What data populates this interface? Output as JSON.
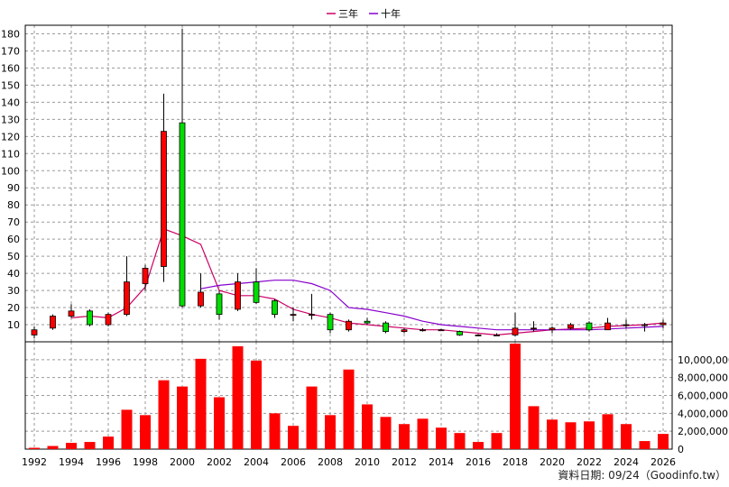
{
  "chart_data": [
    {
      "type": "candlestick",
      "panel": "price",
      "legend": [
        {
          "name": "三年",
          "color": "#cc0066"
        },
        {
          "name": "十年",
          "color": "#8800cc"
        }
      ],
      "legend_position": "top-center",
      "ylim": [
        0,
        185
      ],
      "yticks": [
        10,
        20,
        30,
        40,
        50,
        60,
        70,
        80,
        90,
        100,
        110,
        120,
        130,
        140,
        150,
        160,
        170,
        180
      ],
      "grid": true,
      "up_color": "#ff0000",
      "down_color": "#00dd00",
      "candles": [
        {
          "year": 1992,
          "open": 4,
          "close": 7,
          "high": 9,
          "low": 2
        },
        {
          "year": 1993,
          "open": 8,
          "close": 15,
          "high": 16,
          "low": 7
        },
        {
          "year": 1994,
          "open": 15,
          "close": 18,
          "high": 22,
          "low": 14
        },
        {
          "year": 1995,
          "open": 18,
          "close": 10,
          "high": 19,
          "low": 9
        },
        {
          "year": 1996,
          "open": 10,
          "close": 16,
          "high": 17,
          "low": 9
        },
        {
          "year": 1997,
          "open": 16,
          "close": 35,
          "high": 50,
          "low": 15
        },
        {
          "year": 1998,
          "open": 34,
          "close": 43,
          "high": 45,
          "low": 30
        },
        {
          "year": 1999,
          "open": 44,
          "close": 123,
          "high": 145,
          "low": 35
        },
        {
          "year": 2000,
          "open": 128,
          "close": 21,
          "high": 183,
          "low": 20
        },
        {
          "year": 2001,
          "open": 21,
          "close": 29,
          "high": 40,
          "low": 20
        },
        {
          "year": 2002,
          "open": 28,
          "close": 16,
          "high": 30,
          "low": 13
        },
        {
          "year": 2003,
          "open": 19,
          "close": 35,
          "high": 40,
          "low": 18
        },
        {
          "year": 2004,
          "open": 35,
          "close": 23,
          "high": 43,
          "low": 22
        },
        {
          "year": 2005,
          "open": 24,
          "close": 16,
          "high": 25,
          "low": 14
        },
        {
          "year": 2006,
          "open": 16,
          "close": 16,
          "high": 20,
          "low": 12
        },
        {
          "year": 2007,
          "open": 16,
          "close": 16,
          "high": 28,
          "low": 13
        },
        {
          "year": 2008,
          "open": 16,
          "close": 7,
          "high": 17,
          "low": 5
        },
        {
          "year": 2009,
          "open": 7,
          "close": 12,
          "high": 13,
          "low": 6
        },
        {
          "year": 2010,
          "open": 12,
          "close": 11,
          "high": 14,
          "low": 10
        },
        {
          "year": 2011,
          "open": 11,
          "close": 6,
          "high": 12,
          "low": 5
        },
        {
          "year": 2012,
          "open": 6,
          "close": 7,
          "high": 8,
          "low": 5
        },
        {
          "year": 2013,
          "open": 7,
          "close": 7,
          "high": 8,
          "low": 6
        },
        {
          "year": 2014,
          "open": 7,
          "close": 7,
          "high": 7.5,
          "low": 6.5
        },
        {
          "year": 2015,
          "open": 6,
          "close": 4,
          "high": 6.5,
          "low": 3.5
        },
        {
          "year": 2016,
          "open": 4,
          "close": 4,
          "high": 4.5,
          "low": 3.5
        },
        {
          "year": 2017,
          "open": 4,
          "close": 4,
          "high": 5,
          "low": 3.5
        },
        {
          "year": 2018,
          "open": 4,
          "close": 8,
          "high": 17,
          "low": 3
        },
        {
          "year": 2019,
          "open": 8,
          "close": 8,
          "high": 12,
          "low": 6
        },
        {
          "year": 2020,
          "open": 7,
          "close": 8,
          "high": 9,
          "low": 5
        },
        {
          "year": 2021,
          "open": 8,
          "close": 10,
          "high": 11,
          "low": 7
        },
        {
          "year": 2022,
          "open": 11,
          "close": 7,
          "high": 12,
          "low": 6
        },
        {
          "year": 2023,
          "open": 7,
          "close": 11,
          "high": 14,
          "low": 7
        },
        {
          "year": 2024,
          "open": 10,
          "close": 10,
          "high": 13,
          "low": 8
        },
        {
          "year": 2025,
          "open": 10,
          "close": 10,
          "high": 11,
          "low": 6
        },
        {
          "year": 2026,
          "open": 10,
          "close": 11,
          "high": 13,
          "low": 8
        }
      ],
      "series": [
        {
          "name": "三年",
          "color": "#cc0066",
          "points": [
            [
              1994,
              14
            ],
            [
              1995,
              15
            ],
            [
              1996,
              14
            ],
            [
              1997,
              20
            ],
            [
              1998,
              32
            ],
            [
              1999,
              66
            ],
            [
              2000,
              62
            ],
            [
              2001,
              57
            ],
            [
              2002,
              30
            ],
            [
              2003,
              27
            ],
            [
              2004,
              27
            ],
            [
              2005,
              25
            ],
            [
              2006,
              19
            ],
            [
              2007,
              16
            ],
            [
              2008,
              14
            ],
            [
              2009,
              11
            ],
            [
              2010,
              10
            ],
            [
              2011,
              9
            ],
            [
              2012,
              8
            ],
            [
              2013,
              7
            ],
            [
              2014,
              7
            ],
            [
              2015,
              6
            ],
            [
              2016,
              5
            ],
            [
              2017,
              4
            ],
            [
              2018,
              5
            ],
            [
              2019,
              6
            ],
            [
              2020,
              7
            ],
            [
              2021,
              7.5
            ],
            [
              2022,
              8
            ],
            [
              2023,
              9
            ],
            [
              2024,
              9.5
            ],
            [
              2025,
              10
            ],
            [
              2026,
              11
            ]
          ]
        },
        {
          "name": "十年",
          "color": "#8800cc",
          "points": [
            [
              2001,
              31
            ],
            [
              2002,
              33
            ],
            [
              2003,
              34
            ],
            [
              2004,
              35
            ],
            [
              2005,
              36
            ],
            [
              2006,
              36
            ],
            [
              2007,
              34
            ],
            [
              2008,
              30
            ],
            [
              2009,
              20
            ],
            [
              2010,
              19
            ],
            [
              2011,
              17
            ],
            [
              2012,
              15
            ],
            [
              2013,
              12
            ],
            [
              2014,
              10
            ],
            [
              2015,
              9
            ],
            [
              2016,
              8
            ],
            [
              2017,
              7
            ],
            [
              2018,
              7
            ],
            [
              2019,
              7
            ],
            [
              2020,
              7
            ],
            [
              2021,
              7
            ],
            [
              2022,
              7
            ],
            [
              2023,
              7.5
            ],
            [
              2024,
              8
            ],
            [
              2025,
              8.5
            ],
            [
              2026,
              9
            ]
          ]
        }
      ]
    },
    {
      "type": "bar",
      "panel": "volume",
      "color": "#ff0000",
      "ylim": [
        0,
        12000000
      ],
      "yticks": [
        0,
        2000000,
        4000000,
        6000000,
        8000000,
        10000000
      ],
      "ytick_labels": [
        "0",
        "2,000,000",
        "4,000,000",
        "6,000,000",
        "8,000,000",
        "10,000,000"
      ],
      "y_axis_side": "right",
      "categories": [
        1992,
        1993,
        1994,
        1995,
        1996,
        1997,
        1998,
        1999,
        2000,
        2001,
        2002,
        2003,
        2004,
        2005,
        2006,
        2007,
        2008,
        2009,
        2010,
        2011,
        2012,
        2013,
        2014,
        2015,
        2016,
        2017,
        2018,
        2019,
        2020,
        2021,
        2022,
        2023,
        2024,
        2025,
        2026
      ],
      "values": [
        150000,
        350000,
        700000,
        800000,
        1400000,
        4400000,
        3800000,
        7700000,
        7000000,
        10100000,
        5800000,
        11500000,
        9900000,
        4000000,
        2600000,
        7000000,
        3800000,
        8900000,
        5000000,
        3600000,
        2800000,
        3400000,
        2400000,
        1800000,
        800000,
        1800000,
        11800000,
        4800000,
        3300000,
        3000000,
        3100000,
        3900000,
        2800000,
        900000,
        1700000
      ]
    }
  ],
  "x_axis": {
    "labels": [
      "1992",
      "1994",
      "1996",
      "1998",
      "2000",
      "2002",
      "2004",
      "2006",
      "2008",
      "2010",
      "2012",
      "2014",
      "2016",
      "2018",
      "2020",
      "2022",
      "2024",
      "2026"
    ]
  },
  "footer": {
    "source_text": "資料日期: 09/24（Goodinfo.tw）"
  }
}
